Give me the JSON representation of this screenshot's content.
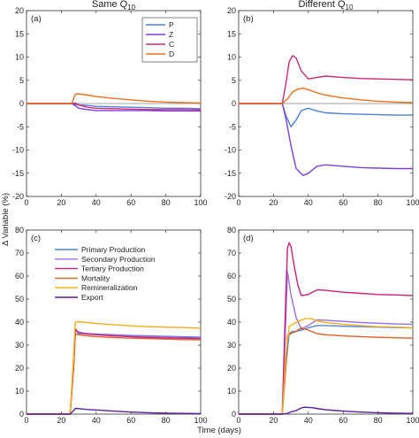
{
  "chart_data": [
    {
      "type": "line",
      "panel_label": "(a)",
      "title_main": "Same Q",
      "title_sub": "10",
      "xlim": [
        0,
        100
      ],
      "ylim": [
        -20,
        20
      ],
      "xticks": [
        0,
        20,
        40,
        60,
        80,
        100
      ],
      "yticks": [
        -20,
        -15,
        -10,
        -5,
        0,
        5,
        10,
        15,
        20
      ],
      "legend_position": "top-right",
      "series": [
        {
          "name": "P",
          "color": "#4f7fd8",
          "x": [
            0,
            26,
            28,
            30,
            35,
            40,
            50,
            60,
            70,
            80,
            90,
            100
          ],
          "y": [
            0,
            0,
            -0.2,
            -0.3,
            -0.4,
            -0.6,
            -0.7,
            -0.8,
            -0.9,
            -1.0,
            -1.0,
            -1.1
          ]
        },
        {
          "name": "Z",
          "color": "#7b3fe0",
          "x": [
            0,
            26,
            28,
            30,
            35,
            40,
            50,
            60,
            70,
            80,
            90,
            100
          ],
          "y": [
            0,
            0,
            -0.5,
            -1.0,
            -1.3,
            -1.5,
            -1.5,
            -1.5,
            -1.5,
            -1.6,
            -1.6,
            -1.6
          ]
        },
        {
          "name": "C",
          "color": "#cc2a72",
          "x": [
            0,
            26,
            28,
            30,
            35,
            40,
            50,
            60,
            70,
            80,
            90,
            100
          ],
          "y": [
            0,
            0,
            0.1,
            -0.3,
            -0.8,
            -1.0,
            -1.1,
            -1.2,
            -1.3,
            -1.3,
            -1.3,
            -1.4
          ]
        },
        {
          "name": "D",
          "color": "#e87020",
          "x": [
            0,
            26,
            28,
            30,
            35,
            40,
            50,
            60,
            70,
            80,
            90,
            100
          ],
          "y": [
            0,
            0,
            2.0,
            2.1,
            1.8,
            1.5,
            1.1,
            0.8,
            0.5,
            0.3,
            0.2,
            0.1
          ]
        }
      ]
    },
    {
      "type": "line",
      "panel_label": "(b)",
      "title_main": "Different Q",
      "title_sub": "10",
      "xlim": [
        0,
        100
      ],
      "ylim": [
        -20,
        20
      ],
      "xticks": [
        0,
        20,
        40,
        60,
        80,
        100
      ],
      "yticks": [
        -20,
        -15,
        -10,
        -5,
        0,
        5,
        10,
        15,
        20
      ],
      "series": [
        {
          "name": "P",
          "color": "#4f7fd8",
          "x": [
            0,
            25,
            27,
            30,
            33,
            36,
            40,
            45,
            50,
            60,
            70,
            80,
            90,
            100
          ],
          "y": [
            0,
            0,
            -2.5,
            -5.0,
            -3.5,
            -1.5,
            -1.0,
            -1.6,
            -2.0,
            -2.2,
            -2.3,
            -2.4,
            -2.5,
            -2.5
          ]
        },
        {
          "name": "Z",
          "color": "#7b3fe0",
          "x": [
            0,
            25,
            27,
            30,
            33,
            37,
            40,
            45,
            50,
            60,
            70,
            80,
            90,
            100
          ],
          "y": [
            0,
            0,
            -3,
            -9,
            -14,
            -15.5,
            -15,
            -13.5,
            -13.2,
            -13.5,
            -13.8,
            -13.9,
            -14.0,
            -14.0
          ]
        },
        {
          "name": "C",
          "color": "#cc2a72",
          "x": [
            0,
            25,
            27,
            29,
            31,
            33,
            36,
            40,
            45,
            50,
            60,
            70,
            80,
            90,
            100
          ],
          "y": [
            0,
            0,
            4,
            9,
            10.3,
            9.8,
            7,
            5.3,
            5.6,
            5.9,
            5.6,
            5.4,
            5.3,
            5.2,
            5.1
          ]
        },
        {
          "name": "D",
          "color": "#e87020",
          "x": [
            0,
            25,
            28,
            31,
            34,
            37,
            40,
            45,
            50,
            60,
            70,
            80,
            90,
            100
          ],
          "y": [
            0,
            0,
            1.0,
            2.5,
            3.1,
            3.3,
            3.0,
            2.3,
            1.8,
            1.2,
            0.8,
            0.5,
            0.3,
            0.2
          ]
        }
      ]
    },
    {
      "type": "line",
      "panel_label": "(c)",
      "xlim": [
        0,
        100
      ],
      "ylim": [
        0,
        80
      ],
      "xticks": [
        0,
        20,
        40,
        60,
        80,
        100
      ],
      "yticks": [
        0,
        10,
        20,
        30,
        40,
        50,
        60,
        70,
        80
      ],
      "legend_position": "top-left",
      "series": [
        {
          "name": "Primary Production",
          "color": "#4f86d4",
          "x": [
            0,
            25,
            27,
            28,
            30,
            35,
            40,
            50,
            60,
            70,
            80,
            90,
            100
          ],
          "y": [
            0,
            0,
            20,
            34.5,
            35,
            35,
            34.8,
            34.5,
            34.2,
            34,
            33.8,
            33.6,
            33.5
          ]
        },
        {
          "name": "Secondary Production",
          "color": "#9b6ee8",
          "x": [
            0,
            25,
            27,
            28,
            30,
            35,
            40,
            50,
            60,
            70,
            80,
            90,
            100
          ],
          "y": [
            0,
            0,
            20,
            36,
            35.5,
            35,
            34.7,
            34.3,
            34,
            33.8,
            33.6,
            33.4,
            33.2
          ]
        },
        {
          "name": "Tertiary Production",
          "color": "#c8207c",
          "x": [
            0,
            25,
            27,
            28,
            30,
            35,
            40,
            50,
            60,
            70,
            80,
            90,
            100
          ],
          "y": [
            0,
            0,
            20,
            37,
            35.5,
            34.8,
            34.5,
            34,
            33.6,
            33.3,
            33.1,
            33,
            32.8
          ]
        },
        {
          "name": "Mortality",
          "color": "#e0602a",
          "x": [
            0,
            25,
            27,
            28,
            30,
            35,
            40,
            50,
            60,
            70,
            80,
            90,
            100
          ],
          "y": [
            0,
            0,
            20,
            35,
            34.5,
            34,
            33.7,
            33.3,
            33,
            32.8,
            32.6,
            32.4,
            32.3
          ]
        },
        {
          "name": "Remineralization",
          "color": "#f5ae1a",
          "x": [
            0,
            25,
            27,
            28,
            30,
            35,
            40,
            50,
            60,
            70,
            80,
            90,
            100
          ],
          "y": [
            0,
            0,
            25,
            40,
            40.2,
            39.8,
            39.4,
            38.8,
            38.4,
            38,
            37.8,
            37.6,
            37.4
          ]
        },
        {
          "name": "Export",
          "color": "#5a1f9a",
          "x": [
            0,
            25,
            27,
            28,
            30,
            35,
            40,
            50,
            60,
            70,
            80,
            90,
            100
          ],
          "y": [
            0,
            0,
            1.5,
            2.5,
            2.4,
            2.0,
            1.8,
            1.3,
            0.9,
            0.6,
            0.4,
            0.3,
            0.2
          ]
        }
      ]
    },
    {
      "type": "line",
      "panel_label": "(d)",
      "xlim": [
        0,
        100
      ],
      "ylim": [
        0,
        80
      ],
      "xticks": [
        0,
        20,
        40,
        60,
        80,
        100
      ],
      "yticks": [
        0,
        10,
        20,
        30,
        40,
        50,
        60,
        70,
        80
      ],
      "series": [
        {
          "name": "Primary Production",
          "color": "#4f86d4",
          "x": [
            0,
            25,
            27,
            29,
            31,
            33,
            36,
            40,
            45,
            50,
            60,
            70,
            80,
            90,
            100
          ],
          "y": [
            0,
            0,
            20,
            35,
            36,
            36,
            36.5,
            37.5,
            38.5,
            38.5,
            38.2,
            38,
            37.8,
            37.6,
            37.5
          ]
        },
        {
          "name": "Secondary Production",
          "color": "#9b6ee8",
          "x": [
            0,
            25,
            27,
            28,
            30,
            33,
            36,
            40,
            45,
            50,
            60,
            70,
            80,
            90,
            100
          ],
          "y": [
            0,
            0,
            40,
            62,
            52,
            42,
            37,
            38.5,
            41,
            40.8,
            40.3,
            39.8,
            39.5,
            39.2,
            39
          ]
        },
        {
          "name": "Tertiary Production",
          "color": "#c8207c",
          "x": [
            0,
            25,
            27,
            28,
            29,
            30,
            32,
            34,
            36,
            40,
            45,
            50,
            60,
            70,
            80,
            90,
            100
          ],
          "y": [
            0,
            0,
            50,
            72,
            74.5,
            73,
            64,
            56,
            51.5,
            52,
            54,
            53.8,
            53,
            52.5,
            52,
            51.8,
            51.5
          ]
        },
        {
          "name": "Mortality",
          "color": "#e0602a",
          "x": [
            0,
            25,
            27,
            28,
            30,
            33,
            36,
            40,
            45,
            50,
            60,
            70,
            80,
            90,
            100
          ],
          "y": [
            0,
            0,
            20,
            34,
            35,
            36,
            37.5,
            36.5,
            35,
            34.5,
            34,
            33.7,
            33.4,
            33.2,
            33
          ]
        },
        {
          "name": "Remineralization",
          "color": "#f5ae1a",
          "x": [
            0,
            25,
            27,
            29,
            32,
            35,
            38,
            42,
            45,
            50,
            60,
            70,
            80,
            90,
            100
          ],
          "y": [
            0,
            0,
            25,
            38,
            39.5,
            40.5,
            41.5,
            41.5,
            40.5,
            39.8,
            39,
            38.5,
            38,
            37.8,
            37.5
          ]
        },
        {
          "name": "Export",
          "color": "#5a1f9a",
          "x": [
            0,
            25,
            28,
            30,
            33,
            36,
            38,
            42,
            46,
            50,
            60,
            70,
            80,
            90,
            100
          ],
          "y": [
            0,
            0,
            0.3,
            1.0,
            1.5,
            2.7,
            3.0,
            2.8,
            2.3,
            1.9,
            1.3,
            0.9,
            0.6,
            0.4,
            0.3
          ]
        }
      ]
    }
  ],
  "ylabel": "Δ Variable (%)",
  "xlabel": "Time (days)"
}
